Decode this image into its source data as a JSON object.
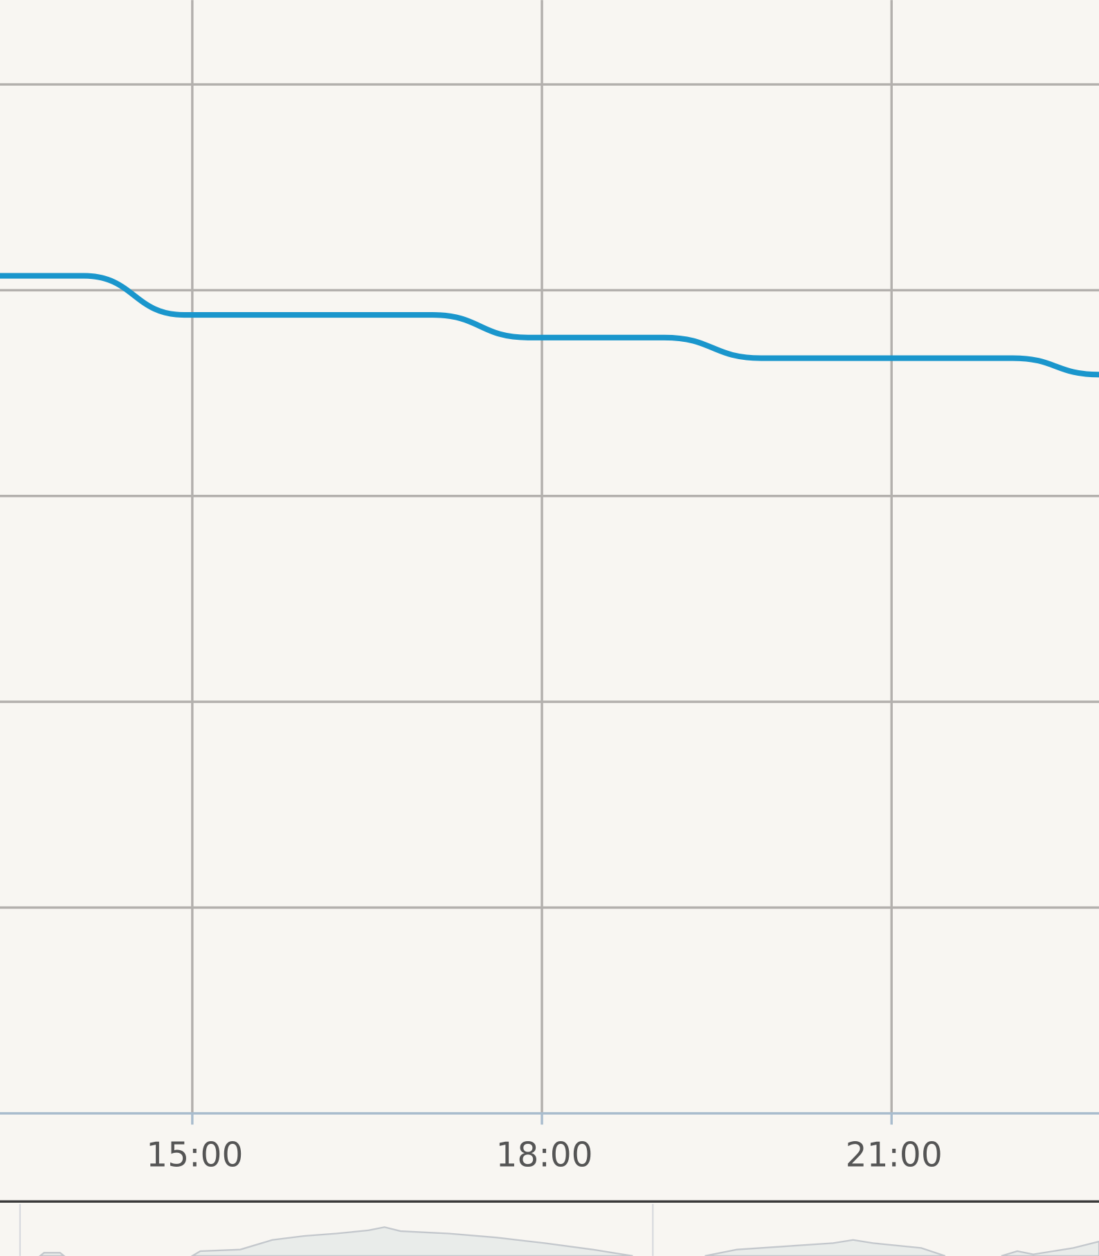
{
  "chart_data": {
    "type": "line",
    "x": [
      13.35,
      14.07,
      14.93,
      17.06,
      17.88,
      19.05,
      19.88,
      22.04,
      22.78
    ],
    "series": [
      {
        "color": "#1a96cc",
        "values": [
          4.07,
          4.07,
          3.88,
          3.88,
          3.77,
          3.77,
          3.67,
          3.67,
          3.59
        ]
      }
    ],
    "xlim": [
      13.35,
      22.78
    ],
    "xticks": [
      {
        "value": 15,
        "label": "15:00"
      },
      {
        "value": 18,
        "label": "18:00"
      },
      {
        "value": 21,
        "label": "21:00"
      }
    ],
    "ylim": [
      0,
      5.41
    ],
    "yticks": [
      1,
      2,
      3,
      4,
      5
    ],
    "grid": true
  }
}
